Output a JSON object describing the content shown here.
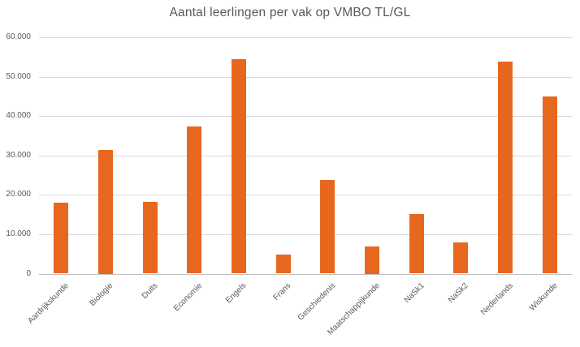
{
  "chart_data": {
    "type": "bar",
    "title": "Aantal leerlingen per vak op VMBO TL/GL",
    "categories": [
      "Aardrijkskunde",
      "Biologie",
      "Duits",
      "Economie",
      "Engels",
      "Frans",
      "Geschiedenis",
      "Maatschappijkunde",
      "NaSk1",
      "NaSk2",
      "Nederlands",
      "Wiskunde"
    ],
    "values": [
      18100,
      31500,
      18300,
      37400,
      54400,
      4800,
      23800,
      6900,
      15100,
      8000,
      53900,
      44900
    ],
    "xlabel": "",
    "ylabel": "",
    "ylim": [
      0,
      60000
    ],
    "ytick_interval": 10000,
    "ytick_labels": [
      "0",
      "10.000",
      "20.000",
      "30.000",
      "40.000",
      "50.000",
      "60.000"
    ],
    "grid": true,
    "legend": false,
    "bar_color": "#e8671e",
    "grid_color": "#d9d9d9",
    "axis_color": "#bfbfbf",
    "text_color": "#595959"
  }
}
